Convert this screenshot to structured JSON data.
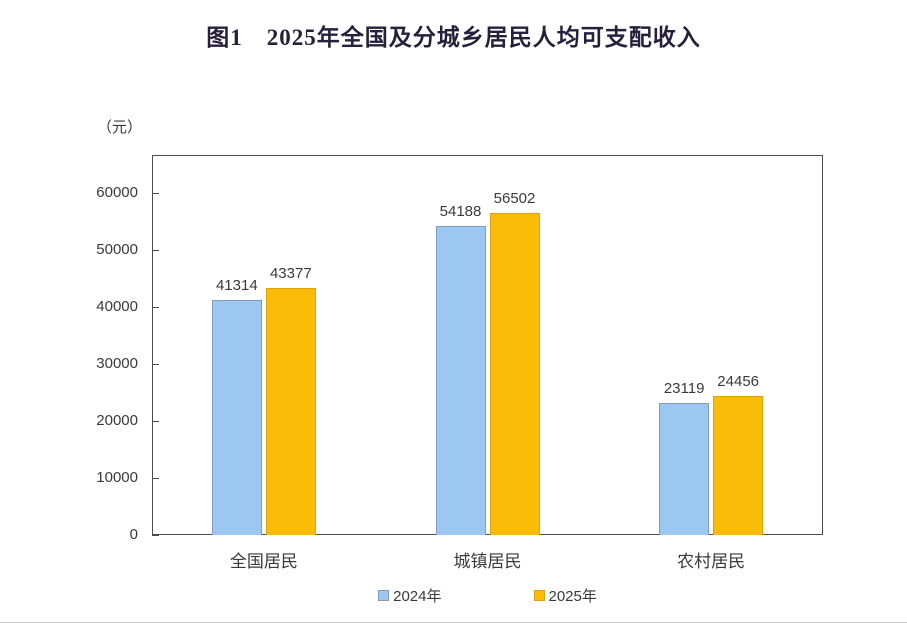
{
  "page": {
    "background": "#ffffff",
    "bottom_divider_color": "#c9c9c9"
  },
  "chart_data": {
    "type": "bar",
    "title": "图1　2025年全国及分城乡居民人均可支配收入",
    "unit_label": "（元）",
    "categories": [
      "全国居民",
      "城镇居民",
      "农村居民"
    ],
    "series": [
      {
        "name": "2024年",
        "fill": "#9CC7F0",
        "border": "#7F9DB9",
        "values": [
          41314,
          54188,
          23119
        ]
      },
      {
        "name": "2025年",
        "fill": "#FBBC09",
        "border": "#DFA109",
        "values": [
          43377,
          56502,
          24456
        ]
      }
    ],
    "ylim": [
      0,
      66667
    ],
    "yticks": [
      0,
      10000,
      20000,
      30000,
      40000,
      50000,
      60000
    ],
    "ytick_labels": [
      "0",
      "10000",
      "20000",
      "30000",
      "40000",
      "50000",
      "60000"
    ],
    "legend_position": "bottom",
    "grid": false,
    "axis_color": "#4d4d4d",
    "text_color": "#3a3a3a",
    "title_color": "#26203d"
  }
}
